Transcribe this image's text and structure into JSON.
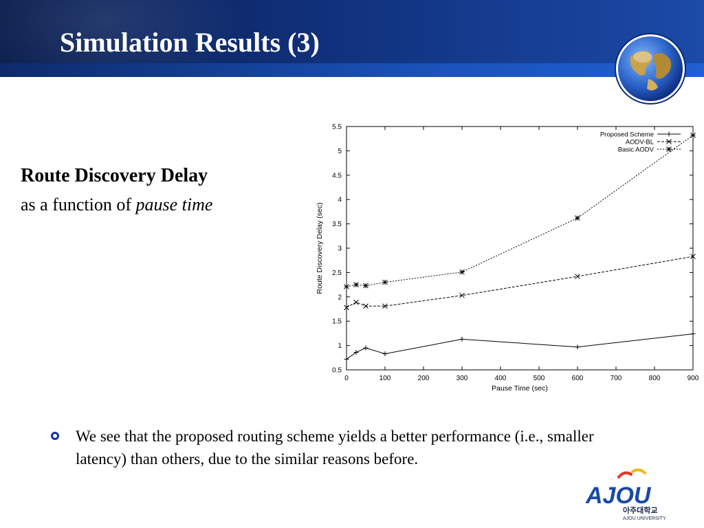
{
  "slide": {
    "title": "Simulation Results (3)",
    "subtitle_bold": "Route Discovery Delay",
    "subtitle_prefix": "as a function of ",
    "subtitle_italic": "pause time",
    "bullet": "We see that the proposed routing scheme yields a better performance (i.e., smaller latency) than others, due to the similar reasons before.",
    "logo_wordmark": "AJOU",
    "logo_korean": "아주대학교",
    "logo_english": "AJOU UNIVERSITY"
  },
  "colors": {
    "header_dark": "#0b1f4e",
    "header_light": "#1b4aa8",
    "bullet": "#1530a8",
    "logo_blue": "#1a4aa8",
    "logo_red": "#e03a2a",
    "logo_yellow": "#f2b90f"
  },
  "chart_data": {
    "type": "line",
    "title": "",
    "xlabel": "Pause Time (sec)",
    "ylabel": "Route Discovery Delay (sec)",
    "xlim": [
      0,
      900
    ],
    "ylim": [
      0.5,
      5.5
    ],
    "xticks": [
      "0",
      "100",
      "200",
      "300",
      "400",
      "500",
      "600",
      "700",
      "800",
      "900"
    ],
    "yticks": [
      "0.5",
      "1",
      "1.5",
      "2",
      "2.5",
      "3",
      "3.5",
      "4",
      "4.5",
      "5",
      "5.5"
    ],
    "grid": false,
    "legend_position": "top-right",
    "series": [
      {
        "name": "Proposed Scheme",
        "marker": "plus",
        "dash": "solid",
        "x": [
          0,
          25,
          50,
          100,
          300,
          600,
          900
        ],
        "y": [
          0.72,
          0.86,
          0.95,
          0.83,
          1.13,
          0.97,
          1.24
        ]
      },
      {
        "name": "AODV-BL",
        "marker": "x",
        "dash": "dashed",
        "x": [
          0,
          25,
          50,
          100,
          300,
          600,
          900
        ],
        "y": [
          1.78,
          1.89,
          1.81,
          1.81,
          2.03,
          2.42,
          2.83
        ]
      },
      {
        "name": "Basic AODV",
        "marker": "star",
        "dash": "dotted",
        "x": [
          0,
          25,
          50,
          100,
          300,
          600,
          900
        ],
        "y": [
          2.21,
          2.25,
          2.23,
          2.3,
          2.51,
          3.62,
          5.32
        ]
      }
    ]
  }
}
